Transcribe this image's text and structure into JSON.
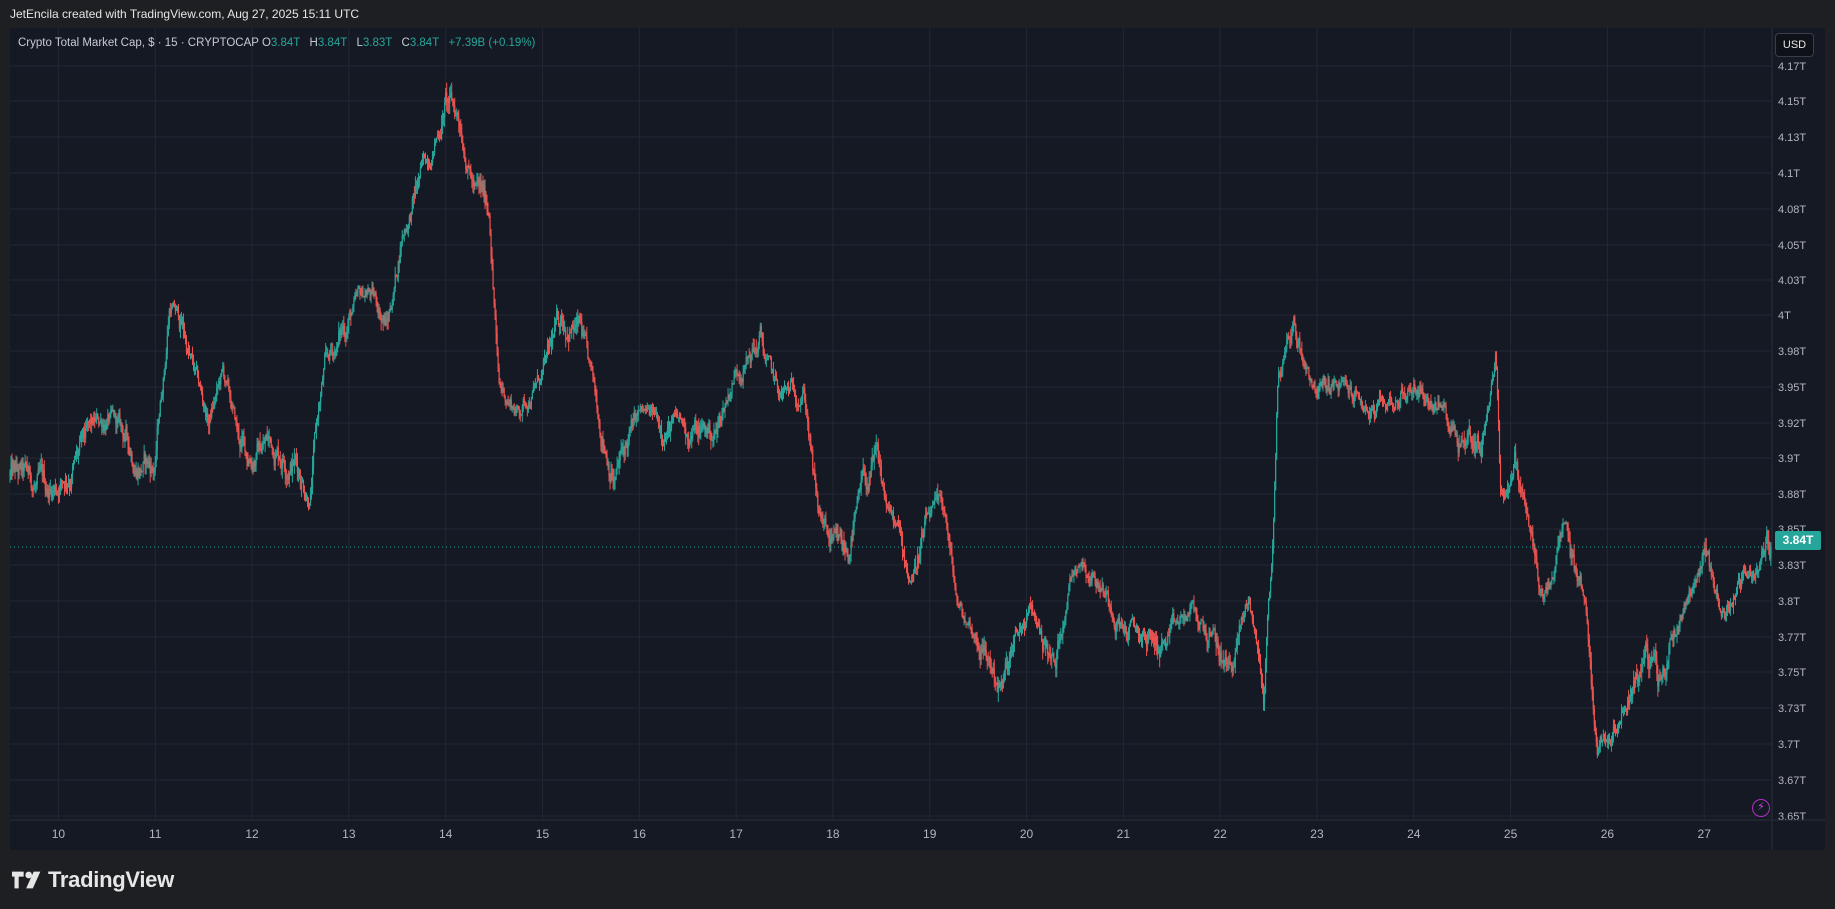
{
  "header": {
    "attribution": "JetEncila created with TradingView.com, Aug 27, 2025 15:11 UTC"
  },
  "legend": {
    "symbol": "Crypto Total Market Cap, $ · 15 · CRYPTOCAP",
    "o_label": "O",
    "o_value": "3.84T",
    "h_label": "H",
    "h_value": "3.84T",
    "l_label": "L",
    "l_value": "3.83T",
    "c_label": "C",
    "c_value": "3.84T",
    "change": "+7.39B (+0.19%)"
  },
  "currency_button": "USD",
  "last_price_label": "3.84T",
  "footer": {
    "brand": "TradingView"
  },
  "colors": {
    "background": "#151924",
    "up": "#26a69a",
    "down": "#ef5350",
    "grid": "#242733",
    "axis_text": "#b2b5be"
  },
  "icons": {
    "alert": "lightning-bolt-icon",
    "brand": "tradingview-logo-icon"
  },
  "chart_data": {
    "type": "candlestick",
    "title": "Crypto Total Market Cap, $ · 15 · CRYPTOCAP",
    "interval": "15",
    "x_tick_labels": [
      "10",
      "11",
      "12",
      "13",
      "14",
      "15",
      "16",
      "17",
      "18",
      "19",
      "20",
      "21",
      "22",
      "23",
      "24",
      "25",
      "26",
      "27"
    ],
    "y_tick_labels": [
      "3.65T",
      "3.67T",
      "3.7T",
      "3.73T",
      "3.75T",
      "3.77T",
      "3.8T",
      "3.83T",
      "3.85T",
      "3.88T",
      "3.9T",
      "3.92T",
      "3.95T",
      "3.98T",
      "4T",
      "4.03T",
      "4.05T",
      "4.08T",
      "4.1T",
      "4.13T",
      "4.15T",
      "4.17T"
    ],
    "y_unit": "T USD",
    "ylim": [
      3.645,
      4.17
    ],
    "xlim": [
      9.5,
      27.7
    ],
    "last_price": 3.84,
    "grid": true,
    "series": [
      {
        "values_x_days": [
          9.5,
          9.9,
          10.2,
          10.5,
          10.8,
          11.0,
          11.15,
          11.3,
          11.55,
          11.7,
          11.85,
          11.95,
          12.15,
          12.45,
          12.6,
          12.75,
          13.0,
          13.2,
          13.4,
          13.55,
          13.8,
          14.0,
          14.15,
          14.3,
          14.45,
          14.55,
          14.75,
          15.0,
          15.2,
          15.4,
          15.6,
          15.75,
          16.0,
          16.3,
          16.6,
          16.8,
          17.0,
          17.25,
          17.45,
          17.7,
          17.85,
          18.0,
          18.15,
          18.3,
          18.45,
          18.6,
          18.8,
          19.0,
          19.15,
          19.3,
          19.55,
          19.75,
          19.95,
          20.05,
          20.3,
          20.45,
          20.55,
          20.8,
          21.0,
          21.2,
          21.45,
          21.7,
          21.9,
          22.1,
          22.3,
          22.45,
          22.55,
          22.6,
          22.75,
          23.0,
          23.15,
          23.35,
          23.6,
          23.8,
          24.05,
          24.3,
          24.5,
          24.7,
          24.85,
          24.9,
          25.05,
          25.2,
          25.35,
          25.55,
          25.75,
          25.9,
          26.05,
          26.2,
          26.4,
          26.55,
          26.75,
          27.0,
          27.2,
          27.4,
          27.6,
          27.65
        ],
        "values_close_T": [
          3.89,
          3.88,
          3.9,
          3.925,
          3.9,
          3.895,
          4.01,
          3.99,
          3.92,
          3.96,
          3.91,
          3.9,
          3.91,
          3.9,
          3.88,
          3.965,
          4.0,
          4.02,
          3.995,
          4.06,
          4.11,
          4.15,
          4.14,
          4.09,
          4.08,
          3.95,
          3.93,
          3.96,
          4.0,
          3.99,
          3.92,
          3.89,
          3.925,
          3.92,
          3.915,
          3.915,
          3.965,
          3.985,
          3.94,
          3.95,
          3.86,
          3.835,
          3.835,
          3.88,
          3.895,
          3.86,
          3.82,
          3.86,
          3.865,
          3.79,
          3.765,
          3.74,
          3.775,
          3.79,
          3.75,
          3.82,
          3.84,
          3.81,
          3.78,
          3.77,
          3.765,
          3.79,
          3.77,
          3.75,
          3.8,
          3.735,
          3.855,
          3.96,
          3.995,
          3.95,
          3.95,
          3.945,
          3.925,
          3.94,
          3.95,
          3.93,
          3.915,
          3.91,
          3.97,
          3.88,
          3.9,
          3.85,
          3.795,
          3.845,
          3.81,
          3.7,
          3.715,
          3.74,
          3.76,
          3.74,
          3.79,
          3.84,
          3.79,
          3.82,
          3.83,
          3.84
        ]
      }
    ]
  }
}
